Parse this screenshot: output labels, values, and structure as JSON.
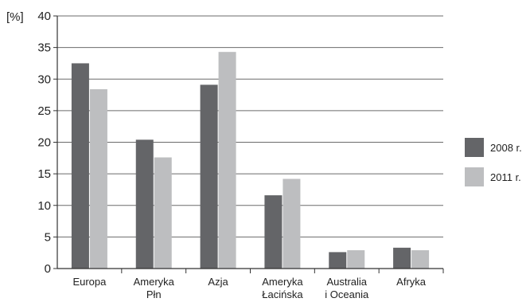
{
  "chart_data": {
    "type": "bar",
    "title": "",
    "unit_label": "[%]",
    "ylim": [
      0,
      40
    ],
    "yticks": [
      0,
      5,
      10,
      15,
      20,
      25,
      30,
      35,
      40
    ],
    "grid": "horizontal",
    "legend_position": "right",
    "categories": [
      [
        "Europa"
      ],
      [
        "Ameryka",
        "Płn"
      ],
      [
        "Azja"
      ],
      [
        "Ameryka",
        "Łacińska"
      ],
      [
        "Australia",
        "i Oceania"
      ],
      [
        "Afryka"
      ]
    ],
    "series": [
      {
        "name": "2008 r.",
        "color": "#646568",
        "values": [
          32.5,
          20.4,
          29.1,
          11.6,
          2.6,
          3.3
        ]
      },
      {
        "name": "2011 r.",
        "color": "#bdbec0",
        "values": [
          28.4,
          17.6,
          34.3,
          14.2,
          2.9,
          2.9
        ]
      }
    ]
  }
}
